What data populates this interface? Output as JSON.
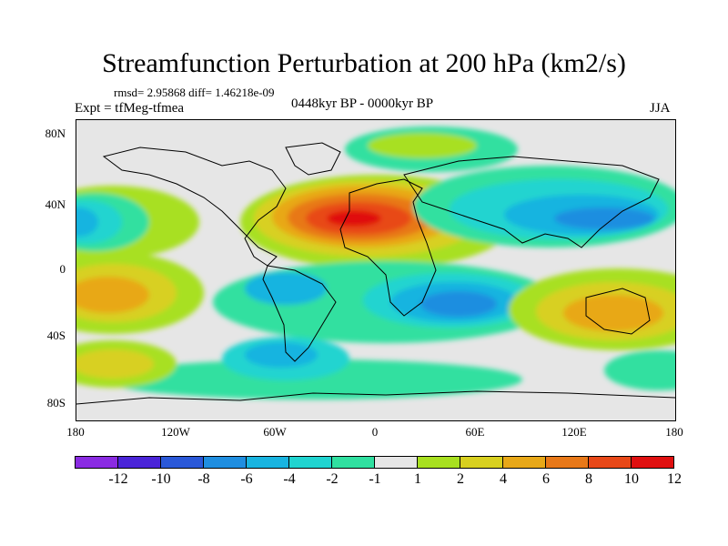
{
  "title": "Streamfunction Perturbation at 200 hPa (km2/s)",
  "stats": "rmsd= 2.95868 diff= 1.46218e-09",
  "experiment": "Expt = tfMeg-tfmea",
  "period": "0448kyr BP - 0000kyr BP",
  "season": "JJA",
  "lat_labels": [
    "80N",
    "40N",
    "0",
    "40S",
    "80S"
  ],
  "lon_labels": [
    "180",
    "120W",
    "60W",
    "0",
    "60E",
    "120E",
    "180"
  ],
  "colorbar": {
    "labels": [
      "-12",
      "-10",
      "-8",
      "-6",
      "-4",
      "-2",
      "-1",
      "1",
      "2",
      "4",
      "6",
      "8",
      "10",
      "12"
    ],
    "colors": [
      "#8a2be2",
      "#4a24d8",
      "#2a58d8",
      "#1f8ee0",
      "#18b4e0",
      "#20d4d0",
      "#30e0a0",
      "#e6e6e6",
      "#a8e020",
      "#d8d020",
      "#e8a818",
      "#e87818",
      "#e84818",
      "#e01010"
    ]
  },
  "map_data": {
    "variable": "streamfunction perturbation",
    "level_hPa": 200,
    "units": "km2/s",
    "features": [
      {
        "name": "north-africa-maximum",
        "lon": -10,
        "lat": 30,
        "value": 11
      },
      {
        "name": "west-pacific-minimum",
        "lon": -175,
        "lat": 35,
        "value": -6
      },
      {
        "name": "south-pacific-maximum",
        "lon": -170,
        "lat": -25,
        "value": 6
      },
      {
        "name": "indian-ocean-minimum",
        "lon": 40,
        "lat": -25,
        "value": -7
      },
      {
        "name": "asia-minimum",
        "lon": 120,
        "lat": 35,
        "value": -6
      },
      {
        "name": "australia-maximum",
        "lon": 140,
        "lat": -30,
        "value": 7
      },
      {
        "name": "south-atlantic-minimum",
        "lon": -55,
        "lat": -55,
        "value": -5
      }
    ]
  }
}
